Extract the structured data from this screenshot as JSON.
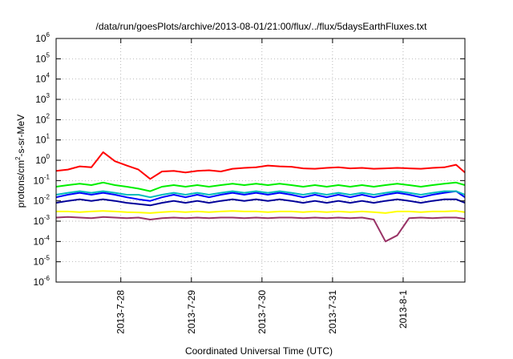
{
  "chart_data": {
    "type": "line",
    "title": "/data/run/goesPlots/archive/2013-08-01/21:00/flux/../flux/5daysEarthFluxes.txt",
    "xlabel": "Coordinated Universal Time (UTC)",
    "ylabel": {
      "prefix": "protons/cm",
      "sup": "2",
      "suffix": "-s-sr-MeV"
    },
    "y_scale": "log",
    "ylim": [
      1e-06,
      1000000
    ],
    "y_ticks": [
      {
        "value": 1e-06,
        "base": "10",
        "exp": "-6"
      },
      {
        "value": 1e-05,
        "base": "10",
        "exp": "-5"
      },
      {
        "value": 0.0001,
        "base": "10",
        "exp": "-4"
      },
      {
        "value": 0.001,
        "base": "10",
        "exp": "-3"
      },
      {
        "value": 0.01,
        "base": "10",
        "exp": "-2"
      },
      {
        "value": 0.1,
        "base": "10",
        "exp": "-1"
      },
      {
        "value": 1,
        "base": "10",
        "exp": "0"
      },
      {
        "value": 10,
        "base": "10",
        "exp": "1"
      },
      {
        "value": 100,
        "base": "10",
        "exp": "2"
      },
      {
        "value": 1000,
        "base": "10",
        "exp": "3"
      },
      {
        "value": 10000,
        "base": "10",
        "exp": "4"
      },
      {
        "value": 100000,
        "base": "10",
        "exp": "5"
      },
      {
        "value": 1000000,
        "base": "10",
        "exp": "6"
      }
    ],
    "xlim": [
      "2013-07-27 02:00",
      "2013-08-01 21:00"
    ],
    "x_ticks": [
      {
        "value": "2013-07-28 00:00",
        "label": "2013-7-28"
      },
      {
        "value": "2013-07-29 00:00",
        "label": "2013-7-29"
      },
      {
        "value": "2013-07-30 00:00",
        "label": "2013-7-30"
      },
      {
        "value": "2013-07-31 00:00",
        "label": "2013-7-31"
      },
      {
        "value": "2013-08-01 00:00",
        "label": "2013-8-1"
      }
    ],
    "grid": true,
    "legend": "none",
    "x": [
      "2013-07-27 02:00",
      "2013-07-27 06:00",
      "2013-07-27 10:00",
      "2013-07-27 14:00",
      "2013-07-27 18:00",
      "2013-07-27 22:00",
      "2013-07-28 02:00",
      "2013-07-28 06:00",
      "2013-07-28 10:00",
      "2013-07-28 14:00",
      "2013-07-28 18:00",
      "2013-07-28 22:00",
      "2013-07-29 02:00",
      "2013-07-29 06:00",
      "2013-07-29 10:00",
      "2013-07-29 14:00",
      "2013-07-29 18:00",
      "2013-07-29 22:00",
      "2013-07-30 02:00",
      "2013-07-30 06:00",
      "2013-07-30 10:00",
      "2013-07-30 14:00",
      "2013-07-30 18:00",
      "2013-07-30 22:00",
      "2013-07-31 02:00",
      "2013-07-31 06:00",
      "2013-07-31 10:00",
      "2013-07-31 14:00",
      "2013-07-31 18:00",
      "2013-07-31 22:00",
      "2013-08-01 02:00",
      "2013-08-01 06:00",
      "2013-08-01 10:00",
      "2013-08-01 14:00",
      "2013-08-01 18:00",
      "2013-08-01 21:00"
    ],
    "series": [
      {
        "color": "#ff0000",
        "values": [
          0.3,
          0.35,
          0.5,
          0.45,
          2.5,
          0.9,
          0.55,
          0.35,
          0.12,
          0.28,
          0.3,
          0.25,
          0.3,
          0.32,
          0.28,
          0.38,
          0.42,
          0.45,
          0.55,
          0.5,
          0.48,
          0.4,
          0.38,
          0.42,
          0.45,
          0.4,
          0.42,
          0.38,
          0.4,
          0.42,
          0.4,
          0.38,
          0.42,
          0.45,
          0.6,
          0.25
        ]
      },
      {
        "color": "#00ee00",
        "values": [
          0.05,
          0.06,
          0.07,
          0.06,
          0.08,
          0.06,
          0.05,
          0.04,
          0.03,
          0.05,
          0.06,
          0.05,
          0.06,
          0.05,
          0.06,
          0.07,
          0.06,
          0.07,
          0.06,
          0.07,
          0.06,
          0.05,
          0.06,
          0.05,
          0.06,
          0.05,
          0.06,
          0.05,
          0.06,
          0.07,
          0.06,
          0.05,
          0.06,
          0.07,
          0.08,
          0.06
        ]
      },
      {
        "color": "#00bbbb",
        "values": [
          0.02,
          0.025,
          0.03,
          0.025,
          0.03,
          0.025,
          0.02,
          0.02,
          0.015,
          0.02,
          0.025,
          0.02,
          0.025,
          0.02,
          0.025,
          0.03,
          0.025,
          0.03,
          0.025,
          0.03,
          0.025,
          0.02,
          0.025,
          0.02,
          0.025,
          0.02,
          0.025,
          0.02,
          0.025,
          0.03,
          0.025,
          0.02,
          0.025,
          0.03,
          0.03,
          0.02
        ]
      },
      {
        "color": "#0000ff",
        "values": [
          0.015,
          0.02,
          0.025,
          0.02,
          0.025,
          0.02,
          0.015,
          0.012,
          0.01,
          0.015,
          0.02,
          0.015,
          0.02,
          0.015,
          0.02,
          0.025,
          0.02,
          0.025,
          0.02,
          0.025,
          0.02,
          0.015,
          0.02,
          0.015,
          0.02,
          0.015,
          0.02,
          0.015,
          0.02,
          0.025,
          0.02,
          0.015,
          0.02,
          0.025,
          0.03,
          0.015
        ]
      },
      {
        "color": "#000099",
        "values": [
          0.008,
          0.01,
          0.012,
          0.01,
          0.012,
          0.01,
          0.008,
          0.007,
          0.006,
          0.008,
          0.01,
          0.008,
          0.01,
          0.008,
          0.01,
          0.012,
          0.01,
          0.012,
          0.01,
          0.012,
          0.01,
          0.008,
          0.01,
          0.008,
          0.01,
          0.008,
          0.01,
          0.008,
          0.01,
          0.012,
          0.01,
          0.008,
          0.01,
          0.012,
          0.012,
          0.008
        ]
      },
      {
        "color": "#ffff00",
        "values": [
          0.003,
          0.003,
          0.0028,
          0.003,
          0.0032,
          0.003,
          0.0028,
          0.0027,
          0.0025,
          0.0028,
          0.003,
          0.0028,
          0.003,
          0.0028,
          0.003,
          0.0032,
          0.003,
          0.003,
          0.0028,
          0.003,
          0.003,
          0.0028,
          0.003,
          0.0028,
          0.003,
          0.0028,
          0.003,
          0.0028,
          0.0025,
          0.003,
          0.003,
          0.0028,
          0.003,
          0.003,
          0.0032,
          0.0028
        ]
      },
      {
        "color": "#993366",
        "values": [
          0.0015,
          0.0016,
          0.0015,
          0.0014,
          0.0016,
          0.0015,
          0.0014,
          0.0015,
          0.0012,
          0.0014,
          0.0015,
          0.0014,
          0.0015,
          0.0014,
          0.0015,
          0.0015,
          0.0014,
          0.0015,
          0.0014,
          0.0015,
          0.0015,
          0.0014,
          0.0015,
          0.0014,
          0.0015,
          0.0014,
          0.0015,
          0.0012,
          0.0001,
          0.0002,
          0.0014,
          0.0015,
          0.0014,
          0.0015,
          0.0015,
          0.0013
        ]
      }
    ]
  }
}
